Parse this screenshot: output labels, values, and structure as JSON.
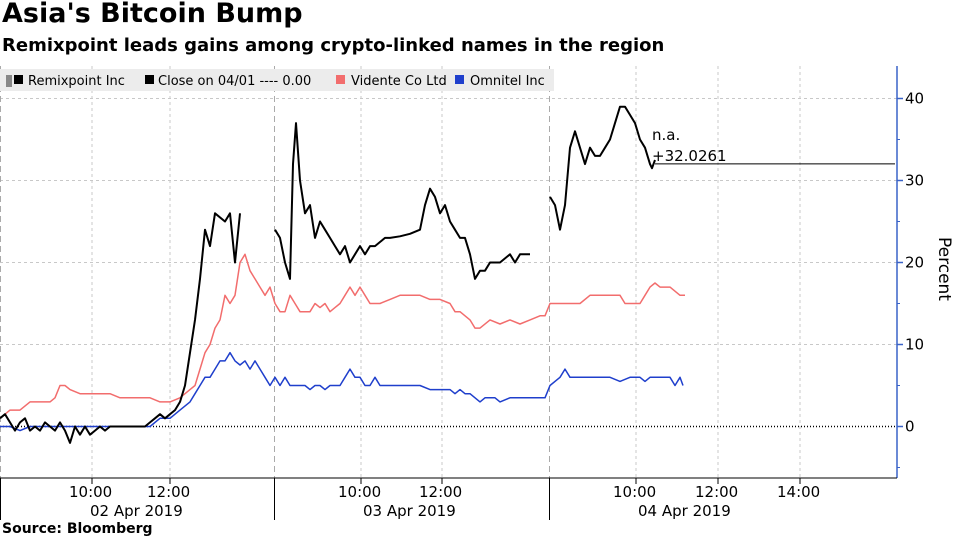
{
  "title": "Asia's Bitcoin Bump",
  "subtitle": "Remixpoint leads gains among crypto-linked names in the region",
  "source": "Source: Bloomberg",
  "colors": {
    "remixpoint": "#000000",
    "vidente": "#f26d6d",
    "omnitel": "#1f3fcc",
    "zero_line": "#000000",
    "grid": "#c8c8c8",
    "legend_bg": "#ececec",
    "axis": "#3a63c8"
  },
  "chart_data": {
    "type": "line",
    "title": "Asia's Bitcoin Bump",
    "subtitle": "Remixpoint leads gains among crypto-linked names in the region",
    "ylabel": "Percent",
    "ylim": [
      -6,
      44
    ],
    "yticks": [
      0,
      10,
      20,
      30,
      40
    ],
    "grid": true,
    "legend_position": "top-left",
    "legend": [
      {
        "label": "Remixpoint Inc",
        "color": "#000000"
      },
      {
        "label": "Close on 04/01 ---- 0.00",
        "color": "#000000"
      },
      {
        "label": "Vidente Co Ltd",
        "color": "#f26d6d"
      },
      {
        "label": "Omnitel Inc",
        "color": "#1f3fcc"
      }
    ],
    "x_tick_labels": [
      "10:00",
      "12:00",
      "10:00",
      "12:00",
      "10:00",
      "12:00",
      "14:00"
    ],
    "day_labels": [
      "02 Apr 2019",
      "03 Apr 2019",
      "04 Apr 2019"
    ],
    "annotation": {
      "line1": "n.a.",
      "line2": "+32.0261",
      "value": 32.0261
    },
    "series": [
      {
        "name": "Remixpoint Inc",
        "values": [
          [
            0,
            1
          ],
          [
            5,
            1.5
          ],
          [
            10,
            0.5
          ],
          [
            15,
            -0.5
          ],
          [
            20,
            0.5
          ],
          [
            25,
            1
          ],
          [
            30,
            -0.5
          ],
          [
            35,
            0
          ],
          [
            40,
            -0.5
          ],
          [
            45,
            0.5
          ],
          [
            50,
            0
          ],
          [
            55,
            -0.5
          ],
          [
            60,
            0.5
          ],
          [
            65,
            -0.5
          ],
          [
            70,
            -2
          ],
          [
            75,
            0
          ],
          [
            80,
            -1
          ],
          [
            85,
            0
          ],
          [
            90,
            -1
          ],
          [
            95,
            -0.5
          ],
          [
            100,
            0
          ],
          [
            105,
            -0.5
          ],
          [
            110,
            0
          ],
          [
            115,
            0
          ],
          [
            120,
            0
          ],
          [
            125,
            0
          ],
          [
            130,
            0
          ],
          [
            135,
            0
          ],
          [
            140,
            0
          ],
          [
            145,
            0
          ],
          [
            150,
            0.5
          ],
          [
            155,
            1
          ],
          [
            160,
            1.5
          ],
          [
            165,
            1
          ],
          [
            170,
            1.5
          ],
          [
            175,
            2
          ],
          [
            180,
            3
          ],
          [
            185,
            5
          ],
          [
            190,
            9
          ],
          [
            195,
            13
          ],
          [
            200,
            18
          ],
          [
            205,
            24
          ],
          [
            210,
            22
          ],
          [
            215,
            26
          ],
          [
            225,
            25
          ],
          [
            230,
            26
          ],
          [
            235,
            20
          ],
          [
            240,
            26
          ],
          [
            258,
            26
          ],
          [
            275,
            24
          ],
          [
            280,
            23
          ],
          [
            285,
            20
          ],
          [
            290,
            18
          ],
          [
            293,
            32
          ],
          [
            296,
            37
          ],
          [
            300,
            30
          ],
          [
            305,
            26
          ],
          [
            310,
            27
          ],
          [
            315,
            23
          ],
          [
            320,
            25
          ],
          [
            325,
            24
          ],
          [
            330,
            23
          ],
          [
            335,
            22
          ],
          [
            340,
            21
          ],
          [
            345,
            22
          ],
          [
            350,
            20
          ],
          [
            355,
            21
          ],
          [
            360,
            22
          ],
          [
            365,
            21
          ],
          [
            370,
            22
          ],
          [
            375,
            22
          ],
          [
            380,
            22.5
          ],
          [
            385,
            23
          ],
          [
            390,
            23
          ],
          [
            400,
            23.2
          ],
          [
            410,
            23.5
          ],
          [
            420,
            24
          ],
          [
            425,
            27
          ],
          [
            430,
            29
          ],
          [
            435,
            28
          ],
          [
            440,
            26
          ],
          [
            445,
            27
          ],
          [
            450,
            25
          ],
          [
            455,
            24
          ],
          [
            460,
            23
          ],
          [
            465,
            23
          ],
          [
            470,
            21
          ],
          [
            475,
            18
          ],
          [
            480,
            19
          ],
          [
            485,
            19
          ],
          [
            490,
            20
          ],
          [
            495,
            20
          ],
          [
            500,
            20
          ],
          [
            505,
            20.5
          ],
          [
            510,
            21
          ],
          [
            515,
            20
          ],
          [
            520,
            21
          ],
          [
            530,
            21
          ],
          [
            550,
            28
          ],
          [
            555,
            27
          ],
          [
            560,
            24
          ],
          [
            565,
            27
          ],
          [
            570,
            34
          ],
          [
            575,
            36
          ],
          [
            580,
            34
          ],
          [
            585,
            32
          ],
          [
            590,
            34
          ],
          [
            595,
            33
          ],
          [
            600,
            33
          ],
          [
            605,
            34
          ],
          [
            610,
            35
          ],
          [
            615,
            37
          ],
          [
            620,
            39
          ],
          [
            625,
            39
          ],
          [
            630,
            38
          ],
          [
            635,
            37
          ],
          [
            640,
            35
          ],
          [
            645,
            34
          ],
          [
            650,
            32
          ],
          [
            652,
            31.5
          ],
          [
            655,
            32.5
          ]
        ],
        "flat_close": [
          [
            655,
            32.0261
          ],
          [
            895,
            32.0261
          ]
        ]
      },
      {
        "name": "Vidente Co Ltd",
        "values": [
          [
            0,
            1
          ],
          [
            10,
            2
          ],
          [
            20,
            2
          ],
          [
            30,
            3
          ],
          [
            40,
            3
          ],
          [
            50,
            3
          ],
          [
            55,
            3.5
          ],
          [
            60,
            5
          ],
          [
            65,
            5
          ],
          [
            70,
            4.5
          ],
          [
            80,
            4
          ],
          [
            90,
            4
          ],
          [
            100,
            4
          ],
          [
            110,
            4
          ],
          [
            120,
            3.5
          ],
          [
            130,
            3.5
          ],
          [
            140,
            3.5
          ],
          [
            150,
            3.5
          ],
          [
            160,
            3
          ],
          [
            165,
            3
          ],
          [
            170,
            3
          ],
          [
            180,
            3.5
          ],
          [
            190,
            4.5
          ],
          [
            195,
            5
          ],
          [
            200,
            7
          ],
          [
            205,
            9
          ],
          [
            210,
            10
          ],
          [
            215,
            12
          ],
          [
            220,
            13
          ],
          [
            225,
            16
          ],
          [
            230,
            15
          ],
          [
            235,
            16
          ],
          [
            240,
            20
          ],
          [
            245,
            21
          ],
          [
            250,
            19
          ],
          [
            255,
            18
          ],
          [
            260,
            17
          ],
          [
            265,
            16
          ],
          [
            270,
            17
          ],
          [
            275,
            15
          ],
          [
            280,
            14
          ],
          [
            285,
            14
          ],
          [
            290,
            16
          ],
          [
            295,
            15
          ],
          [
            300,
            14
          ],
          [
            305,
            14
          ],
          [
            310,
            14
          ],
          [
            315,
            15
          ],
          [
            320,
            14.5
          ],
          [
            325,
            15
          ],
          [
            330,
            14
          ],
          [
            335,
            14.5
          ],
          [
            340,
            15
          ],
          [
            345,
            16
          ],
          [
            350,
            17
          ],
          [
            355,
            16
          ],
          [
            360,
            17
          ],
          [
            365,
            16
          ],
          [
            370,
            15
          ],
          [
            375,
            15
          ],
          [
            380,
            15
          ],
          [
            390,
            15.5
          ],
          [
            400,
            16
          ],
          [
            410,
            16
          ],
          [
            420,
            16
          ],
          [
            430,
            15.5
          ],
          [
            440,
            15.5
          ],
          [
            450,
            15
          ],
          [
            455,
            14
          ],
          [
            460,
            14
          ],
          [
            465,
            13.5
          ],
          [
            470,
            13
          ],
          [
            475,
            12
          ],
          [
            480,
            12
          ],
          [
            490,
            13
          ],
          [
            500,
            12.5
          ],
          [
            510,
            13
          ],
          [
            520,
            12.5
          ],
          [
            530,
            13
          ],
          [
            540,
            13.5
          ],
          [
            545,
            13.5
          ],
          [
            550,
            15
          ],
          [
            560,
            15
          ],
          [
            570,
            15
          ],
          [
            580,
            15
          ],
          [
            590,
            16
          ],
          [
            600,
            16
          ],
          [
            610,
            16
          ],
          [
            620,
            16
          ],
          [
            625,
            15
          ],
          [
            630,
            15
          ],
          [
            640,
            15
          ],
          [
            645,
            16
          ],
          [
            650,
            17
          ],
          [
            655,
            17.5
          ],
          [
            660,
            17
          ],
          [
            670,
            17
          ],
          [
            675,
            16.5
          ],
          [
            680,
            16
          ],
          [
            685,
            16
          ]
        ]
      },
      {
        "name": "Omnitel Inc",
        "values": [
          [
            0,
            0
          ],
          [
            10,
            0
          ],
          [
            20,
            -0.5
          ],
          [
            30,
            0
          ],
          [
            40,
            0
          ],
          [
            50,
            0
          ],
          [
            60,
            0
          ],
          [
            70,
            0
          ],
          [
            80,
            0
          ],
          [
            90,
            0
          ],
          [
            100,
            0
          ],
          [
            110,
            0
          ],
          [
            120,
            0
          ],
          [
            130,
            0
          ],
          [
            140,
            0
          ],
          [
            150,
            0
          ],
          [
            160,
            1
          ],
          [
            170,
            1
          ],
          [
            180,
            2
          ],
          [
            190,
            3
          ],
          [
            195,
            4
          ],
          [
            200,
            5
          ],
          [
            205,
            6
          ],
          [
            210,
            6
          ],
          [
            215,
            7
          ],
          [
            220,
            8
          ],
          [
            225,
            8
          ],
          [
            230,
            9
          ],
          [
            235,
            8
          ],
          [
            240,
            7.5
          ],
          [
            245,
            8
          ],
          [
            250,
            7
          ],
          [
            255,
            8
          ],
          [
            260,
            7
          ],
          [
            265,
            6
          ],
          [
            270,
            5
          ],
          [
            275,
            6
          ],
          [
            280,
            5
          ],
          [
            285,
            6
          ],
          [
            290,
            5
          ],
          [
            295,
            5
          ],
          [
            300,
            5
          ],
          [
            305,
            5
          ],
          [
            310,
            4.5
          ],
          [
            315,
            5
          ],
          [
            320,
            5
          ],
          [
            325,
            4.5
          ],
          [
            330,
            5
          ],
          [
            335,
            5
          ],
          [
            340,
            5
          ],
          [
            345,
            6
          ],
          [
            350,
            7
          ],
          [
            355,
            6
          ],
          [
            360,
            6
          ],
          [
            365,
            5
          ],
          [
            370,
            5
          ],
          [
            375,
            6
          ],
          [
            380,
            5
          ],
          [
            390,
            5
          ],
          [
            400,
            5
          ],
          [
            410,
            5
          ],
          [
            420,
            5
          ],
          [
            430,
            4.5
          ],
          [
            440,
            4.5
          ],
          [
            450,
            4.5
          ],
          [
            455,
            4
          ],
          [
            460,
            4.5
          ],
          [
            465,
            4
          ],
          [
            470,
            4
          ],
          [
            475,
            3.5
          ],
          [
            480,
            3
          ],
          [
            485,
            3.5
          ],
          [
            490,
            3.5
          ],
          [
            495,
            3.5
          ],
          [
            500,
            3
          ],
          [
            510,
            3.5
          ],
          [
            520,
            3.5
          ],
          [
            530,
            3.5
          ],
          [
            540,
            3.5
          ],
          [
            545,
            3.5
          ],
          [
            550,
            5
          ],
          [
            560,
            6
          ],
          [
            565,
            7
          ],
          [
            570,
            6
          ],
          [
            575,
            6
          ],
          [
            580,
            6
          ],
          [
            590,
            6
          ],
          [
            600,
            6
          ],
          [
            610,
            6
          ],
          [
            620,
            5.5
          ],
          [
            630,
            6
          ],
          [
            640,
            6
          ],
          [
            645,
            5.5
          ],
          [
            650,
            6
          ],
          [
            660,
            6
          ],
          [
            670,
            6
          ],
          [
            675,
            5
          ],
          [
            680,
            6
          ],
          [
            683,
            5
          ]
        ]
      }
    ]
  }
}
